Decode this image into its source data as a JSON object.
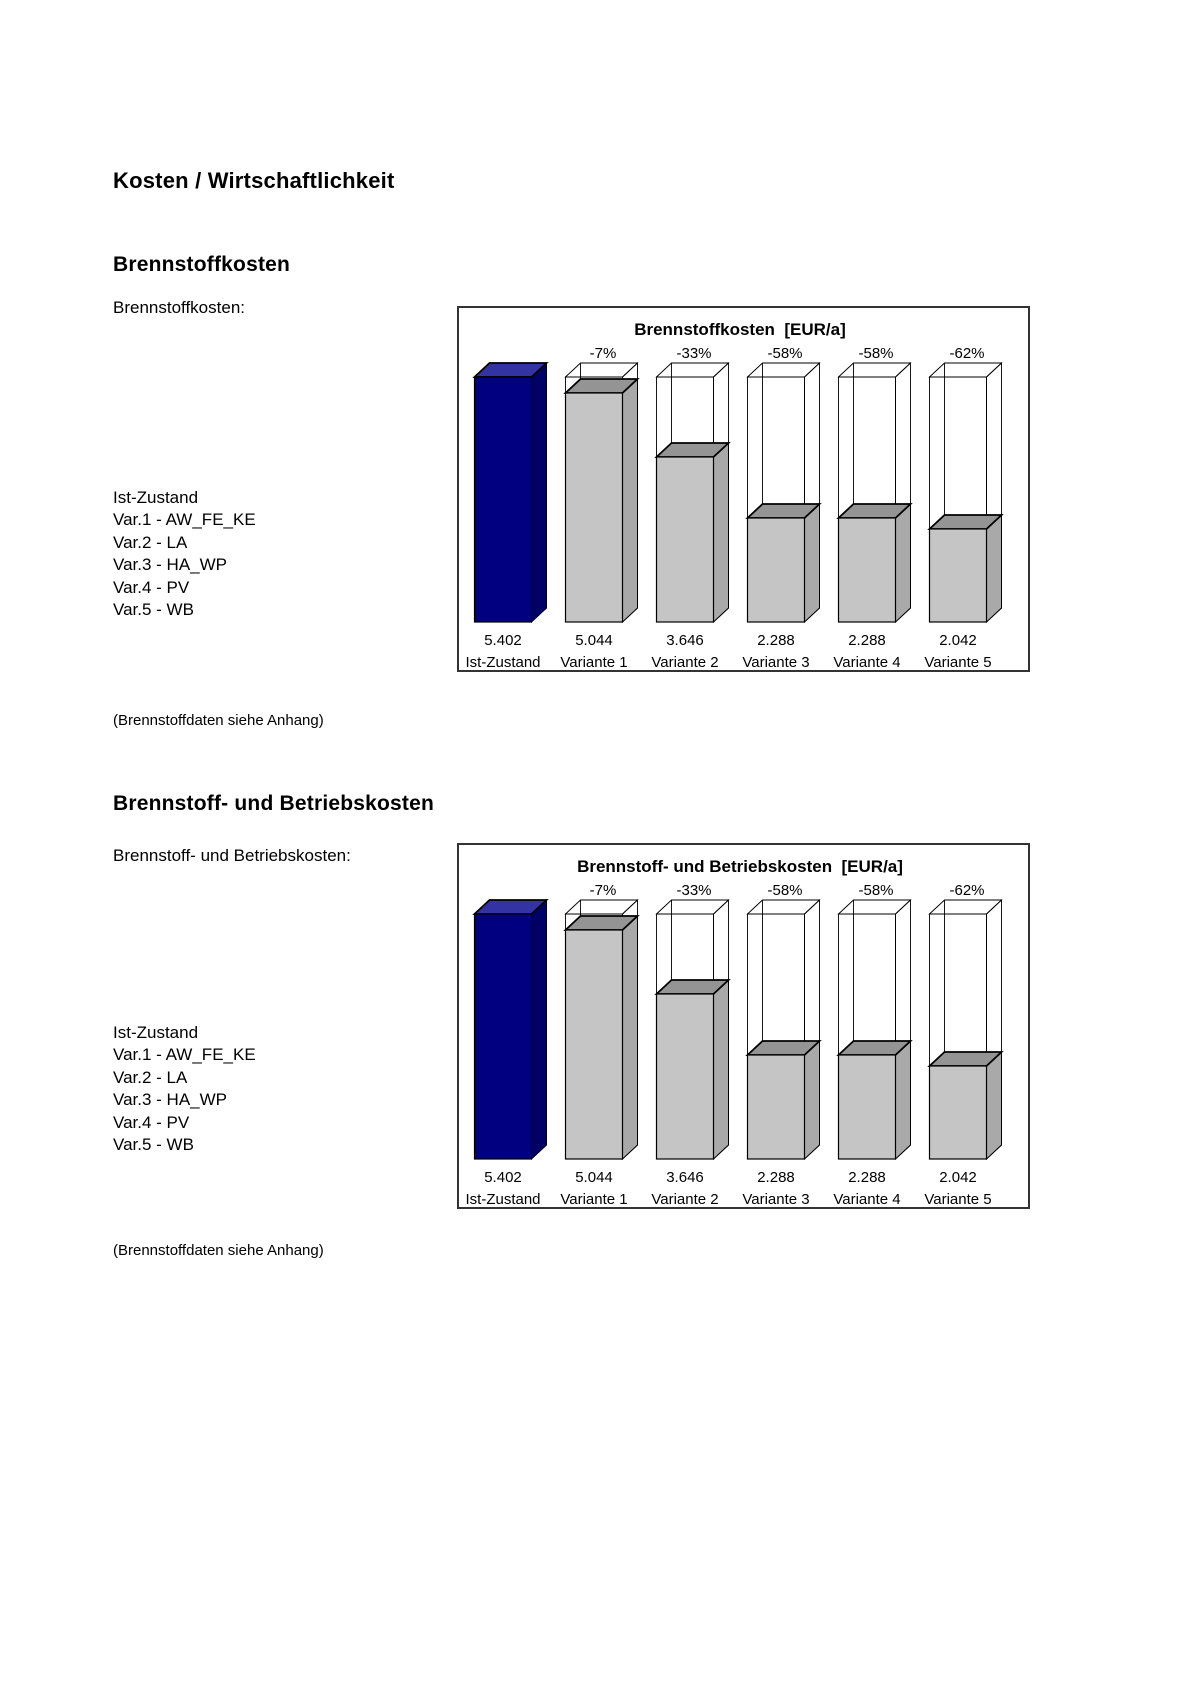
{
  "page": {
    "title": "Kosten / Wirtschaftlichkeit"
  },
  "section1": {
    "heading": "Brennstoffkosten",
    "side_label": "Brennstoffkosten:",
    "note": "(Brennstoffdaten siehe Anhang)"
  },
  "section2": {
    "heading": "Brennstoff- und Betriebskosten",
    "side_label": "Brennstoff- und Betriebskosten:",
    "note": "(Brennstoffdaten siehe Anhang)"
  },
  "variant_list": [
    "Ist-Zustand",
    "Var.1 - AW_FE_KE",
    "Var.2 - LA",
    "Var.3 - HA_WP",
    "Var.4 - PV",
    "Var.5 - WB"
  ],
  "colors": {
    "ist_front": "#000080",
    "ist_top": "#3333a3",
    "ist_side": "#000066",
    "variant_front": "#c5c5c5",
    "variant_top": "#949494",
    "variant_side": "#a9a9a9",
    "outline": "#000000",
    "border": "#333333"
  },
  "chart_data": [
    {
      "type": "bar",
      "style": "3d-bars-with-reference-wireframe",
      "title": "Brennstoffkosten",
      "unit": "[EUR/a]",
      "categories": [
        "Ist-Zustand",
        "Variante 1",
        "Variante 2",
        "Variante 3",
        "Variante 4",
        "Variante 5"
      ],
      "values": [
        5402,
        5044,
        3646,
        2288,
        2288,
        2042
      ],
      "value_labels": [
        "5.402",
        "5.044",
        "3.646",
        "2.288",
        "2.288",
        "2.042"
      ],
      "percent_labels": [
        "",
        "-7%",
        "-33%",
        "-58%",
        "-58%",
        "-62%"
      ],
      "reference_value": 5402,
      "ylim": [
        0,
        5402
      ],
      "grid": false,
      "legend": "none"
    },
    {
      "type": "bar",
      "style": "3d-bars-with-reference-wireframe",
      "title": "Brennstoff- und Betriebskosten",
      "unit": "[EUR/a]",
      "categories": [
        "Ist-Zustand",
        "Variante 1",
        "Variante 2",
        "Variante 3",
        "Variante 4",
        "Variante 5"
      ],
      "values": [
        5402,
        5044,
        3646,
        2288,
        2288,
        2042
      ],
      "value_labels": [
        "5.402",
        "5.044",
        "3.646",
        "2.288",
        "2.288",
        "2.042"
      ],
      "percent_labels": [
        "",
        "-7%",
        "-33%",
        "-58%",
        "-58%",
        "-62%"
      ],
      "reference_value": 5402,
      "ylim": [
        0,
        5402
      ],
      "grid": false,
      "legend": "none"
    }
  ]
}
